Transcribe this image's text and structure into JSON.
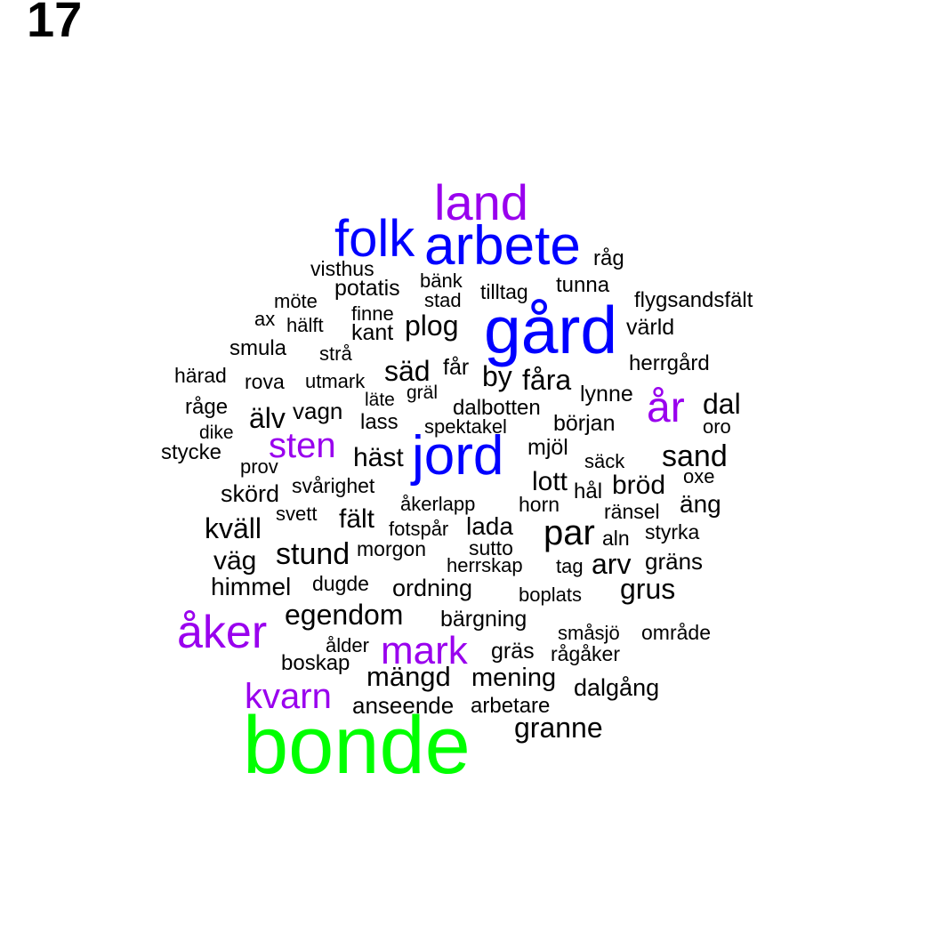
{
  "page_number": "17",
  "colors": {
    "black": "#000000",
    "blue": "#0000ff",
    "purple": "#9900ee",
    "green": "#00ff00"
  },
  "words": [
    {
      "text": "land",
      "color": "purple"
    },
    {
      "text": "folk",
      "color": "blue"
    },
    {
      "text": "arbete",
      "color": "blue"
    },
    {
      "text": "råg",
      "color": "black"
    },
    {
      "text": "visthus",
      "color": "black"
    },
    {
      "text": "bänk",
      "color": "black"
    },
    {
      "text": "tunna",
      "color": "black"
    },
    {
      "text": "potatis",
      "color": "black"
    },
    {
      "text": "stad",
      "color": "black"
    },
    {
      "text": "tilltag",
      "color": "black"
    },
    {
      "text": "flygsandsfält",
      "color": "black"
    },
    {
      "text": "möte",
      "color": "black"
    },
    {
      "text": "finne",
      "color": "black"
    },
    {
      "text": "gård",
      "color": "blue"
    },
    {
      "text": "ax",
      "color": "black"
    },
    {
      "text": "hälft",
      "color": "black"
    },
    {
      "text": "kant",
      "color": "black"
    },
    {
      "text": "plog",
      "color": "black"
    },
    {
      "text": "värld",
      "color": "black"
    },
    {
      "text": "smula",
      "color": "black"
    },
    {
      "text": "strå",
      "color": "black"
    },
    {
      "text": "herrgård",
      "color": "black"
    },
    {
      "text": "härad",
      "color": "black"
    },
    {
      "text": "rova",
      "color": "black"
    },
    {
      "text": "utmark",
      "color": "black"
    },
    {
      "text": "säd",
      "color": "black"
    },
    {
      "text": "får",
      "color": "black"
    },
    {
      "text": "by",
      "color": "black"
    },
    {
      "text": "fåra",
      "color": "black"
    },
    {
      "text": "läte",
      "color": "black"
    },
    {
      "text": "gräl",
      "color": "black"
    },
    {
      "text": "lynne",
      "color": "black"
    },
    {
      "text": "år",
      "color": "purple"
    },
    {
      "text": "dal",
      "color": "black"
    },
    {
      "text": "råge",
      "color": "black"
    },
    {
      "text": "älv",
      "color": "black"
    },
    {
      "text": "vagn",
      "color": "black"
    },
    {
      "text": "dalbotten",
      "color": "black"
    },
    {
      "text": "lass",
      "color": "black"
    },
    {
      "text": "dike",
      "color": "black"
    },
    {
      "text": "spektakel",
      "color": "black"
    },
    {
      "text": "början",
      "color": "black"
    },
    {
      "text": "oro",
      "color": "black"
    },
    {
      "text": "sten",
      "color": "purple"
    },
    {
      "text": "stycke",
      "color": "black"
    },
    {
      "text": "jord",
      "color": "blue"
    },
    {
      "text": "mjöl",
      "color": "black"
    },
    {
      "text": "häst",
      "color": "black"
    },
    {
      "text": "sand",
      "color": "black"
    },
    {
      "text": "prov",
      "color": "black"
    },
    {
      "text": "säck",
      "color": "black"
    },
    {
      "text": "oxe",
      "color": "black"
    },
    {
      "text": "svårighet",
      "color": "black"
    },
    {
      "text": "lott",
      "color": "black"
    },
    {
      "text": "bröd",
      "color": "black"
    },
    {
      "text": "skörd",
      "color": "black"
    },
    {
      "text": "hål",
      "color": "black"
    },
    {
      "text": "åkerlapp",
      "color": "black"
    },
    {
      "text": "horn",
      "color": "black"
    },
    {
      "text": "äng",
      "color": "black"
    },
    {
      "text": "svett",
      "color": "black"
    },
    {
      "text": "ränsel",
      "color": "black"
    },
    {
      "text": "fält",
      "color": "black"
    },
    {
      "text": "kväll",
      "color": "black"
    },
    {
      "text": "lada",
      "color": "black"
    },
    {
      "text": "par",
      "color": "black"
    },
    {
      "text": "fotspår",
      "color": "black"
    },
    {
      "text": "styrka",
      "color": "black"
    },
    {
      "text": "aln",
      "color": "black"
    },
    {
      "text": "sutto",
      "color": "black"
    },
    {
      "text": "morgon",
      "color": "black"
    },
    {
      "text": "stund",
      "color": "black"
    },
    {
      "text": "väg",
      "color": "black"
    },
    {
      "text": "gräns",
      "color": "black"
    },
    {
      "text": "herrskap",
      "color": "black"
    },
    {
      "text": "tag",
      "color": "black"
    },
    {
      "text": "arv",
      "color": "black"
    },
    {
      "text": "dugde",
      "color": "black"
    },
    {
      "text": "himmel",
      "color": "black"
    },
    {
      "text": "ordning",
      "color": "black"
    },
    {
      "text": "grus",
      "color": "black"
    },
    {
      "text": "boplats",
      "color": "black"
    },
    {
      "text": "egendom",
      "color": "black"
    },
    {
      "text": "bärgning",
      "color": "black"
    },
    {
      "text": "åker",
      "color": "purple"
    },
    {
      "text": "småsjö",
      "color": "black"
    },
    {
      "text": "område",
      "color": "black"
    },
    {
      "text": "ålder",
      "color": "black"
    },
    {
      "text": "mark",
      "color": "purple"
    },
    {
      "text": "gräs",
      "color": "black"
    },
    {
      "text": "rågåker",
      "color": "black"
    },
    {
      "text": "boskap",
      "color": "black"
    },
    {
      "text": "mängd",
      "color": "black"
    },
    {
      "text": "mening",
      "color": "black"
    },
    {
      "text": "dalgång",
      "color": "black"
    },
    {
      "text": "kvarn",
      "color": "purple"
    },
    {
      "text": "anseende",
      "color": "black"
    },
    {
      "text": "arbetare",
      "color": "black"
    },
    {
      "text": "granne",
      "color": "black"
    },
    {
      "text": "bonde",
      "color": "green"
    }
  ]
}
